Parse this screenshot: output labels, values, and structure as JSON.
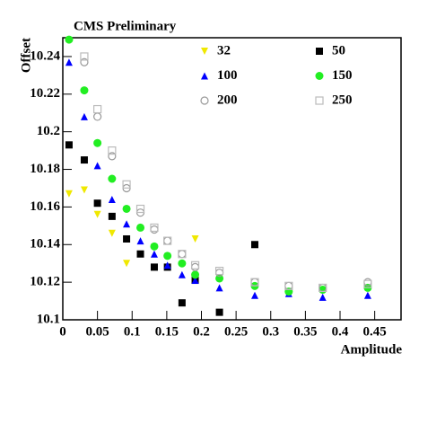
{
  "chart_data": {
    "type": "scatter",
    "title": "CMS Preliminary",
    "x_label": "Amplitude",
    "y_label": "Offset",
    "xlim": [
      0,
      0.488
    ],
    "ylim": [
      10.1,
      10.25
    ],
    "xticks": [
      0,
      0.05,
      0.1,
      0.15,
      0.2,
      0.25,
      0.3,
      0.35,
      0.4,
      0.45
    ],
    "yticks": [
      10.1,
      10.12,
      10.14,
      10.16,
      10.18,
      10.2,
      10.22,
      10.24
    ],
    "series": [
      {
        "name": "32",
        "color": "#f0e800",
        "marker": "triangle-down",
        "x": [
          0.009,
          0.031,
          0.05,
          0.071,
          0.092,
          0.191
        ],
        "values": [
          10.167,
          10.169,
          10.156,
          10.146,
          10.13,
          10.143
        ]
      },
      {
        "name": "50",
        "color": "#000000",
        "marker": "square",
        "x": [
          0.009,
          0.031,
          0.05,
          0.071,
          0.092,
          0.112,
          0.132,
          0.151,
          0.172,
          0.191,
          0.226,
          0.277
        ],
        "values": [
          10.193,
          10.185,
          10.162,
          10.155,
          10.143,
          10.135,
          10.128,
          10.128,
          10.109,
          10.121,
          10.104,
          10.14
        ]
      },
      {
        "name": "100",
        "color": "#0000ff",
        "marker": "triangle-up",
        "x": [
          0.009,
          0.031,
          0.05,
          0.071,
          0.092,
          0.112,
          0.132,
          0.151,
          0.172,
          0.191,
          0.226,
          0.277,
          0.326,
          0.375,
          0.44
        ],
        "values": [
          10.237,
          10.208,
          10.182,
          10.164,
          10.151,
          10.142,
          10.135,
          10.129,
          10.124,
          10.121,
          10.117,
          10.113,
          10.114,
          10.112,
          10.113
        ]
      },
      {
        "name": "150",
        "color": "#22ee22",
        "marker": "circle",
        "x": [
          0.009,
          0.031,
          0.05,
          0.071,
          0.092,
          0.112,
          0.132,
          0.151,
          0.172,
          0.191,
          0.226,
          0.277,
          0.326,
          0.375,
          0.44
        ],
        "values": [
          10.249,
          10.222,
          10.194,
          10.175,
          10.159,
          10.149,
          10.139,
          10.134,
          10.13,
          10.124,
          10.122,
          10.118,
          10.115,
          10.116,
          10.117
        ]
      },
      {
        "name": "200",
        "color": "#999999",
        "marker": "open-circle",
        "x": [
          0.031,
          0.05,
          0.071,
          0.092,
          0.112,
          0.132,
          0.151,
          0.172,
          0.191,
          0.226,
          0.277,
          0.326,
          0.375,
          0.44
        ],
        "values": [
          10.237,
          10.208,
          10.187,
          10.17,
          10.157,
          10.148,
          10.142,
          10.135,
          10.128,
          10.125,
          10.12,
          10.118,
          10.117,
          10.12
        ]
      },
      {
        "name": "250",
        "color": "#bbbbbb",
        "marker": "open-square",
        "x": [
          0.031,
          0.05,
          0.071,
          0.092,
          0.112,
          0.132,
          0.151,
          0.172,
          0.191,
          0.226,
          0.277,
          0.326,
          0.375,
          0.44
        ],
        "values": [
          10.24,
          10.212,
          10.19,
          10.172,
          10.159,
          10.149,
          10.142,
          10.135,
          10.129,
          10.126,
          10.12,
          10.118,
          10.117,
          10.119
        ]
      }
    ]
  }
}
